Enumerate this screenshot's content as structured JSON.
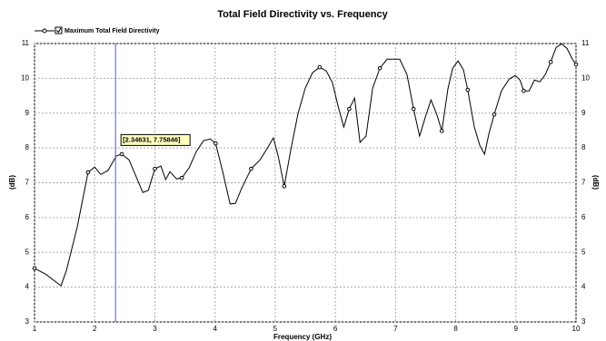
{
  "chart_data": {
    "type": "line",
    "title": "Total Field Directivity vs. Frequency",
    "x_label": "Frequency (GHz)",
    "y_label": "(dB)",
    "y2_label": "(dB)",
    "xlim": [
      1,
      10
    ],
    "xticks": [
      1,
      2,
      3,
      4,
      5,
      6,
      7,
      8,
      9,
      10
    ],
    "ylim": [
      3,
      11
    ],
    "yticks": [
      3,
      4,
      5,
      6,
      7,
      8,
      9,
      10,
      11
    ],
    "y2lim": [
      3,
      11
    ],
    "y2ticks": [
      3,
      4,
      5,
      6,
      7,
      8,
      9,
      10,
      11
    ],
    "grid": true,
    "legend": "top-left",
    "series": [
      {
        "name": "Maximum Total Field Directivity",
        "color": "#000000",
        "x": [
          1.0,
          1.18,
          1.44,
          1.53,
          1.71,
          1.89,
          2.0,
          2.1,
          2.22,
          2.36,
          2.45,
          2.57,
          2.69,
          2.8,
          2.89,
          3.0,
          3.1,
          3.18,
          3.25,
          3.36,
          3.45,
          3.57,
          3.69,
          3.81,
          3.92,
          4.01,
          4.13,
          4.25,
          4.34,
          4.44,
          4.6,
          4.75,
          4.9,
          4.97,
          5.05,
          5.15,
          5.26,
          5.38,
          5.5,
          5.62,
          5.74,
          5.85,
          5.95,
          6.05,
          6.14,
          6.23,
          6.32,
          6.41,
          6.51,
          6.62,
          6.74,
          6.86,
          6.97,
          7.07,
          7.19,
          7.3,
          7.4,
          7.5,
          7.59,
          7.68,
          7.77,
          7.87,
          7.95,
          8.04,
          8.13,
          8.2,
          8.31,
          8.4,
          8.48,
          8.55,
          8.64,
          8.76,
          8.89,
          8.99,
          9.07,
          9.13,
          9.22,
          9.31,
          9.4,
          9.49,
          9.58,
          9.67,
          9.76,
          9.85,
          9.94,
          10.0
        ],
        "values": [
          4.54,
          4.38,
          4.04,
          4.48,
          5.73,
          7.3,
          7.45,
          7.24,
          7.35,
          7.77,
          7.82,
          7.66,
          7.17,
          6.72,
          6.78,
          7.4,
          7.48,
          7.09,
          7.32,
          7.11,
          7.14,
          7.43,
          7.9,
          8.21,
          8.26,
          8.13,
          7.3,
          6.39,
          6.41,
          6.83,
          7.4,
          7.66,
          8.08,
          8.29,
          7.77,
          6.9,
          7.95,
          8.99,
          9.72,
          10.16,
          10.32,
          10.21,
          9.88,
          9.17,
          8.6,
          9.12,
          9.43,
          8.16,
          8.34,
          9.72,
          10.29,
          10.55,
          10.55,
          10.55,
          10.11,
          9.12,
          8.34,
          8.91,
          9.38,
          8.99,
          8.49,
          9.69,
          10.29,
          10.5,
          10.24,
          9.67,
          8.6,
          8.08,
          7.82,
          8.39,
          8.96,
          9.64,
          9.98,
          10.08,
          9.95,
          9.64,
          9.64,
          9.95,
          9.9,
          10.11,
          10.47,
          10.89,
          10.99,
          10.86,
          10.55,
          10.4
        ]
      }
    ],
    "cursor": {
      "x": 2.34631,
      "y": 7.75846,
      "label": "[2.34631, 7.75846]",
      "color": "#5555dd"
    }
  }
}
